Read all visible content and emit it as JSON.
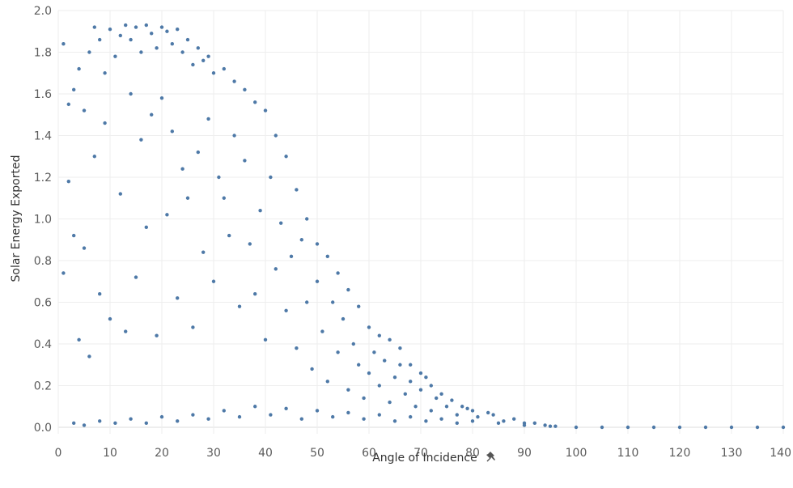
{
  "chart_data": {
    "type": "scatter",
    "title": "",
    "xlabel": "Angle of Incidence",
    "ylabel": "Solar Energy Exported",
    "xlim": [
      0,
      140
    ],
    "ylim": [
      0,
      2.0
    ],
    "x_ticks": [
      "0",
      "10",
      "20",
      "30",
      "40",
      "50",
      "60",
      "70",
      "80",
      "90",
      "100",
      "110",
      "120",
      "130",
      "140"
    ],
    "y_ticks": [
      "0.0",
      "0.2",
      "0.4",
      "0.6",
      "0.8",
      "1.0",
      "1.2",
      "1.4",
      "1.6",
      "1.8",
      "2.0"
    ],
    "grid": true,
    "marker_color": "#4e79a7",
    "pin_icon": "pin-icon",
    "series": [
      {
        "points": [
          [
            1,
            1.84
          ],
          [
            2,
            1.55
          ],
          [
            3,
            1.62
          ],
          [
            4,
            1.72
          ],
          [
            5,
            1.52
          ],
          [
            6,
            1.8
          ],
          [
            7,
            1.92
          ],
          [
            8,
            1.86
          ],
          [
            9,
            1.7
          ],
          [
            10,
            1.91
          ],
          [
            11,
            1.78
          ],
          [
            12,
            1.88
          ],
          [
            13,
            1.93
          ],
          [
            14,
            1.86
          ],
          [
            15,
            1.92
          ],
          [
            16,
            1.8
          ],
          [
            17,
            1.93
          ],
          [
            18,
            1.89
          ],
          [
            19,
            1.82
          ],
          [
            20,
            1.92
          ],
          [
            21,
            1.9
          ],
          [
            22,
            1.84
          ],
          [
            23,
            1.91
          ],
          [
            24,
            1.8
          ],
          [
            25,
            1.86
          ],
          [
            26,
            1.74
          ],
          [
            27,
            1.82
          ],
          [
            28,
            1.76
          ],
          [
            29,
            1.78
          ],
          [
            30,
            1.7
          ],
          [
            32,
            1.72
          ],
          [
            34,
            1.66
          ],
          [
            36,
            1.62
          ],
          [
            38,
            1.56
          ],
          [
            40,
            1.52
          ],
          [
            42,
            1.4
          ],
          [
            44,
            1.3
          ],
          [
            46,
            1.14
          ],
          [
            48,
            1.0
          ],
          [
            50,
            0.88
          ],
          [
            52,
            0.82
          ],
          [
            54,
            0.74
          ],
          [
            56,
            0.66
          ],
          [
            58,
            0.58
          ],
          [
            60,
            0.48
          ],
          [
            62,
            0.44
          ],
          [
            64,
            0.42
          ],
          [
            66,
            0.38
          ],
          [
            68,
            0.3
          ],
          [
            70,
            0.26
          ],
          [
            72,
            0.2
          ],
          [
            74,
            0.16
          ],
          [
            76,
            0.13
          ],
          [
            78,
            0.1
          ],
          [
            80,
            0.08
          ],
          [
            84,
            0.06
          ],
          [
            88,
            0.04
          ],
          [
            92,
            0.02
          ],
          [
            96,
            0.005
          ],
          [
            1,
            0.74
          ],
          [
            2,
            1.18
          ],
          [
            3,
            0.92
          ],
          [
            4,
            0.42
          ],
          [
            5,
            0.86
          ],
          [
            6,
            0.34
          ],
          [
            7,
            1.3
          ],
          [
            8,
            0.64
          ],
          [
            9,
            1.46
          ],
          [
            10,
            0.52
          ],
          [
            12,
            1.12
          ],
          [
            13,
            0.46
          ],
          [
            14,
            1.6
          ],
          [
            15,
            0.72
          ],
          [
            16,
            1.38
          ],
          [
            17,
            0.96
          ],
          [
            18,
            1.5
          ],
          [
            19,
            0.44
          ],
          [
            20,
            1.58
          ],
          [
            21,
            1.02
          ],
          [
            22,
            1.42
          ],
          [
            23,
            0.62
          ],
          [
            24,
            1.24
          ],
          [
            25,
            1.1
          ],
          [
            26,
            0.48
          ],
          [
            27,
            1.32
          ],
          [
            28,
            0.84
          ],
          [
            29,
            1.48
          ],
          [
            30,
            0.7
          ],
          [
            31,
            1.2
          ],
          [
            32,
            1.1
          ],
          [
            33,
            0.92
          ],
          [
            34,
            1.4
          ],
          [
            35,
            0.58
          ],
          [
            36,
            1.28
          ],
          [
            37,
            0.88
          ],
          [
            38,
            0.64
          ],
          [
            39,
            1.04
          ],
          [
            40,
            0.42
          ],
          [
            41,
            1.2
          ],
          [
            42,
            0.76
          ],
          [
            43,
            0.98
          ],
          [
            44,
            0.56
          ],
          [
            45,
            0.82
          ],
          [
            46,
            0.38
          ],
          [
            47,
            0.9
          ],
          [
            48,
            0.6
          ],
          [
            49,
            0.28
          ],
          [
            50,
            0.7
          ],
          [
            51,
            0.46
          ],
          [
            52,
            0.22
          ],
          [
            53,
            0.6
          ],
          [
            54,
            0.36
          ],
          [
            55,
            0.52
          ],
          [
            56,
            0.18
          ],
          [
            57,
            0.4
          ],
          [
            58,
            0.3
          ],
          [
            59,
            0.14
          ],
          [
            60,
            0.26
          ],
          [
            61,
            0.36
          ],
          [
            62,
            0.2
          ],
          [
            63,
            0.32
          ],
          [
            64,
            0.12
          ],
          [
            65,
            0.24
          ],
          [
            66,
            0.3
          ],
          [
            67,
            0.16
          ],
          [
            68,
            0.22
          ],
          [
            69,
            0.1
          ],
          [
            70,
            0.18
          ],
          [
            71,
            0.24
          ],
          [
            72,
            0.08
          ],
          [
            73,
            0.14
          ],
          [
            75,
            0.1
          ],
          [
            77,
            0.06
          ],
          [
            79,
            0.09
          ],
          [
            81,
            0.05
          ],
          [
            83,
            0.07
          ],
          [
            86,
            0.03
          ],
          [
            90,
            0.02
          ],
          [
            94,
            0.01
          ],
          [
            3,
            0.02
          ],
          [
            5,
            0.01
          ],
          [
            8,
            0.03
          ],
          [
            11,
            0.02
          ],
          [
            14,
            0.04
          ],
          [
            17,
            0.02
          ],
          [
            20,
            0.05
          ],
          [
            23,
            0.03
          ],
          [
            26,
            0.06
          ],
          [
            29,
            0.04
          ],
          [
            32,
            0.08
          ],
          [
            35,
            0.05
          ],
          [
            38,
            0.1
          ],
          [
            41,
            0.06
          ],
          [
            44,
            0.09
          ],
          [
            47,
            0.04
          ],
          [
            50,
            0.08
          ],
          [
            53,
            0.05
          ],
          [
            56,
            0.07
          ],
          [
            59,
            0.04
          ],
          [
            62,
            0.06
          ],
          [
            65,
            0.03
          ],
          [
            68,
            0.05
          ],
          [
            71,
            0.03
          ],
          [
            74,
            0.04
          ],
          [
            77,
            0.02
          ],
          [
            80,
            0.03
          ],
          [
            85,
            0.02
          ],
          [
            90,
            0.01
          ],
          [
            95,
            0.005
          ],
          [
            100,
            0
          ],
          [
            105,
            0
          ],
          [
            110,
            0
          ],
          [
            115,
            0
          ],
          [
            120,
            0
          ],
          [
            125,
            0
          ],
          [
            130,
            0
          ],
          [
            135,
            0
          ],
          [
            140,
            0
          ]
        ]
      }
    ]
  }
}
